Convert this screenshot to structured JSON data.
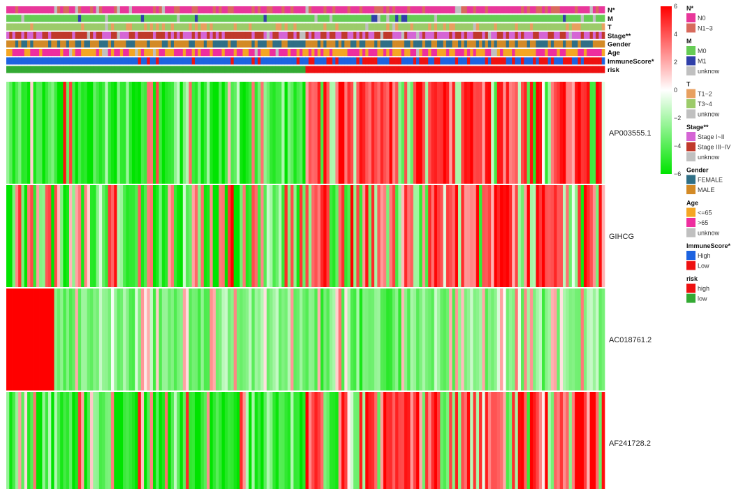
{
  "chart_data": {
    "type": "heatmap",
    "n_samples": 200,
    "annotations": [
      {
        "name": "N*",
        "segments": [
          {
            "level": "N0",
            "frac": 0.7
          },
          {
            "level": "N1~3",
            "frac": 0.25
          },
          {
            "level": "unknow",
            "frac": 0.05
          }
        ]
      },
      {
        "name": "M",
        "segments": [
          {
            "level": "M0",
            "frac": 0.9
          },
          {
            "level": "M1",
            "frac": 0.05
          },
          {
            "level": "unknow",
            "frac": 0.05
          }
        ]
      },
      {
        "name": "T",
        "segments": [
          {
            "level": "T1~2",
            "frac": 0.2
          },
          {
            "level": "T3~4",
            "frac": 0.78
          },
          {
            "level": "unknow",
            "frac": 0.02
          }
        ]
      },
      {
        "name": "Stage**",
        "segments": [
          {
            "level": "Stage I~II",
            "frac": 0.45
          },
          {
            "level": "Stage III~IV",
            "frac": 0.5
          },
          {
            "level": "unknow",
            "frac": 0.05
          }
        ]
      },
      {
        "name": "Gender",
        "segments": [
          {
            "level": "FEMALE",
            "frac": 0.45
          },
          {
            "level": "MALE",
            "frac": 0.55
          }
        ]
      },
      {
        "name": "Age",
        "segments": [
          {
            "level": "<=65",
            "frac": 0.45
          },
          {
            "level": ">65",
            "frac": 0.5
          },
          {
            "level": "unknow",
            "frac": 0.05
          }
        ]
      },
      {
        "name": "ImmuneScore*",
        "segments": [
          {
            "level": "High",
            "frac": 0.5
          },
          {
            "level": "Low",
            "frac": 0.5
          }
        ]
      },
      {
        "name": "risk",
        "segments": [
          {
            "level": "low",
            "frac": 0.5
          },
          {
            "level": "high",
            "frac": 0.5
          }
        ]
      }
    ],
    "genes": [
      "AP003555.1",
      "GIHCG",
      "AC018761.2",
      "AF241728.2"
    ],
    "gene_trends": [
      {
        "gene": "AP003555.1",
        "low_risk_mean": -3.0,
        "high_risk_mean": 2.5,
        "spread": 3.0
      },
      {
        "gene": "GIHCG",
        "low_risk_mean": -1.0,
        "high_risk_mean": 1.5,
        "spread": 3.0
      },
      {
        "gene": "AC018761.2",
        "low_risk_mean": -1.0,
        "high_risk_mean": -1.5,
        "spread": 1.2,
        "leading_high_value": 6,
        "leading_high_frac": 0.08
      },
      {
        "gene": "AF241728.2",
        "low_risk_mean": -2.5,
        "high_risk_mean": 2.0,
        "spread": 3.0
      }
    ],
    "color_scale": {
      "min": -6,
      "max": 6,
      "ticks": [
        6,
        4,
        2,
        0,
        -2,
        -4,
        -6
      ],
      "low_color": "#00e400",
      "mid_color": "#ffffff",
      "high_color": "#ff0000"
    },
    "legend": [
      {
        "title": "N*",
        "items": [
          {
            "label": "N0",
            "color": "#e8379a"
          },
          {
            "label": "N1~3",
            "color": "#d86a5c"
          }
        ]
      },
      {
        "title": "M",
        "items": [
          {
            "label": "M0",
            "color": "#66cc55"
          },
          {
            "label": "M1",
            "color": "#2f3fa8"
          },
          {
            "label": "unknow",
            "color": "#c0c0c0"
          }
        ]
      },
      {
        "title": "T",
        "items": [
          {
            "label": "T1~2",
            "color": "#e8a060"
          },
          {
            "label": "T3~4",
            "color": "#9ccb6a"
          },
          {
            "label": "unknow",
            "color": "#c0c0c0"
          }
        ]
      },
      {
        "title": "Stage**",
        "items": [
          {
            "label": "Stage I~II",
            "color": "#d565d5"
          },
          {
            "label": "Stage III~IV",
            "color": "#c0392b"
          },
          {
            "label": "unknow",
            "color": "#c0c0c0"
          }
        ]
      },
      {
        "title": "Gender",
        "items": [
          {
            "label": "FEMALE",
            "color": "#2f6f86"
          },
          {
            "label": "MALE",
            "color": "#d38a26"
          }
        ]
      },
      {
        "title": "Age",
        "items": [
          {
            "label": "<=65",
            "color": "#f5a623"
          },
          {
            "label": ">65",
            "color": "#ee2e9f"
          },
          {
            "label": "unknow",
            "color": "#c0c0c0"
          }
        ]
      },
      {
        "title": "ImmuneScore*",
        "items": [
          {
            "label": "High",
            "color": "#1d63e0"
          },
          {
            "label": "Low",
            "color": "#ee1111"
          }
        ]
      },
      {
        "title": "risk",
        "items": [
          {
            "label": "high",
            "color": "#ee1111"
          },
          {
            "label": "low",
            "color": "#33aa33"
          }
        ]
      }
    ]
  }
}
